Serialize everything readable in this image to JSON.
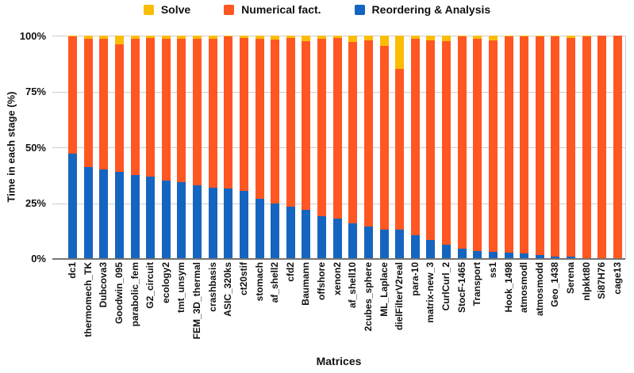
{
  "legend": {
    "items": [
      {
        "key": "solve",
        "label": "Solve",
        "color": "#FBBC04"
      },
      {
        "key": "numerical",
        "label": "Numerical fact.",
        "color": "#FF5722"
      },
      {
        "key": "reordering",
        "label": "Reordering & Analysis",
        "color": "#1565C0"
      }
    ]
  },
  "axes": {
    "y_title": "Time in each stage (%)",
    "x_title": "Matrices",
    "y_ticks": [
      "100%",
      "75%",
      "50%",
      "25%",
      "0%"
    ]
  },
  "chart_data": {
    "type": "bar",
    "stacked": true,
    "orientation": "vertical",
    "units": "percent",
    "title": "",
    "xlabel": "Matrices",
    "ylabel": "Time in each stage (%)",
    "ylim": [
      0,
      100
    ],
    "grid": true,
    "legend_position": "top",
    "categories": [
      "dc1",
      "thermomech_TK",
      "Dubcova3",
      "Goodwin_095",
      "parabolic_fem",
      "G2_circuit",
      "ecology2",
      "tmt_unsym",
      "FEM_3D_thermal",
      "crashbasis",
      "ASIC_320ks",
      "ct20stif",
      "stomach",
      "af_shell2",
      "cfd2",
      "Baumann",
      "offshore",
      "xenon2",
      "af_shell10",
      "2cubes_sphere",
      "ML_Laplace",
      "dielFilterV2real",
      "para-10",
      "matrix-new_3",
      "CurlCurl_2",
      "StocF-1465",
      "Transport",
      "ss1",
      "Hook_1498",
      "atmosmodl",
      "atmosmodd",
      "Geo_1438",
      "Serena",
      "nlpkkt80",
      "Si87H76",
      "cage13"
    ],
    "series": [
      {
        "key": "reordering",
        "name": "Reordering & Analysis",
        "color": "#1565C0",
        "values": [
          47,
          41,
          40,
          39,
          37.5,
          37,
          35,
          34.5,
          33,
          32,
          31.5,
          30.5,
          27,
          25,
          23.5,
          22,
          19,
          18,
          16,
          14.5,
          13,
          13,
          10.5,
          8.5,
          6.5,
          4.5,
          3.7,
          3.1,
          2.7,
          2.4,
          1.7,
          1.2,
          1,
          0.4,
          0.3,
          0.2
        ]
      },
      {
        "key": "numerical",
        "name": "Numerical fact.",
        "color": "#FF5722",
        "values": [
          52.7,
          57.5,
          58.5,
          57,
          61,
          61.8,
          63.5,
          64,
          65.7,
          66.5,
          68.2,
          68.3,
          71.7,
          73.2,
          75.3,
          75.7,
          79.7,
          80.8,
          81,
          83.5,
          82.5,
          72,
          88,
          89.5,
          91.1,
          95,
          94.9,
          94.9,
          97,
          97.1,
          98,
          98.3,
          97.8,
          99.3,
          99.7,
          99.8
        ]
      },
      {
        "key": "solve",
        "name": "Solve",
        "color": "#FBBC04",
        "values": [
          0.3,
          1.5,
          1.5,
          4,
          1.5,
          1.2,
          1.5,
          1.5,
          1.3,
          1.5,
          0.3,
          1.2,
          1.3,
          1.8,
          1.2,
          2.3,
          1.3,
          1.2,
          3,
          2,
          4.5,
          15,
          1.5,
          2,
          2.4,
          0.5,
          1.4,
          2,
          0.3,
          0.5,
          0.3,
          0.5,
          1.2,
          0.3,
          0,
          0
        ]
      }
    ]
  }
}
